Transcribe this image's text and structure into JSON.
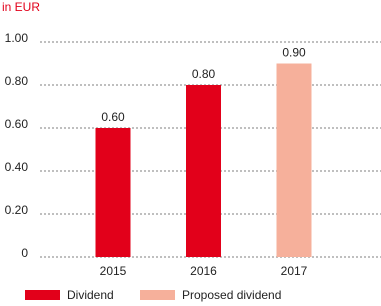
{
  "chart_data": {
    "type": "bar",
    "y_label": "in EUR",
    "categories": [
      "2015",
      "2016",
      "2017"
    ],
    "series": [
      {
        "name": "Dividend",
        "color": "#e2001a",
        "values": [
          0.6,
          0.8,
          null
        ],
        "value_labels": [
          "0.60",
          "0.80",
          null
        ]
      },
      {
        "name": "Proposed dividend",
        "color": "#f6b09b",
        "values": [
          null,
          null,
          0.9
        ],
        "value_labels": [
          null,
          null,
          "0.90"
        ]
      }
    ],
    "ylim": [
      0,
      1
    ],
    "yticks": [
      0,
      {
        "value": 0.2,
        "label": "0.20"
      },
      {
        "value": 0.4,
        "label": "0.40"
      },
      {
        "value": 0.6,
        "label": "0.60"
      },
      {
        "value": 0.8,
        "label": "0.80"
      },
      {
        "value": 1,
        "label": "1.00"
      }
    ],
    "grid": true
  }
}
